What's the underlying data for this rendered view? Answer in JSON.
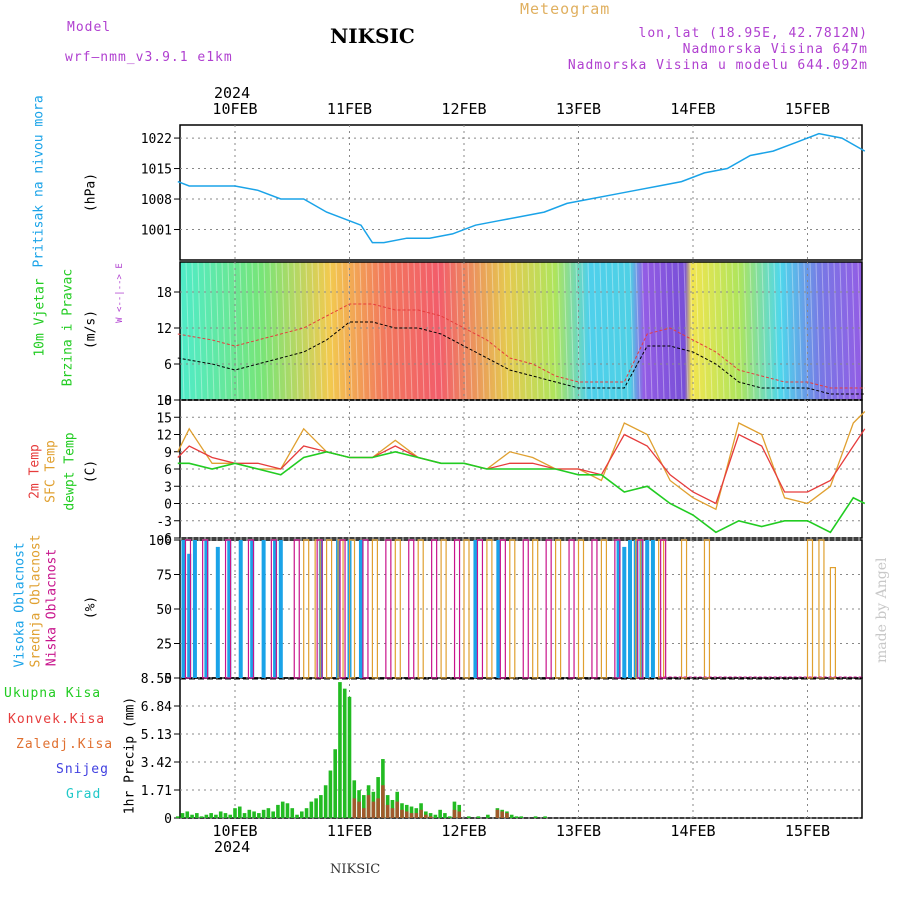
{
  "header": {
    "model_label": "Model",
    "model_name": "wrf—nmm_v3.9.1  e1km",
    "title": "NIKSIC",
    "app_title": "Meteogram",
    "coords": "lon,lat (18.95E, 42.7812N)",
    "elevation": "Nadmorska Visina 647m",
    "model_elevation": "Nadmorska Visina u modelu 644.092m",
    "year_top": "2024",
    "year_bottom": "2024",
    "footer": "NIKSIC",
    "watermark": "made by Angel"
  },
  "colors": {
    "pressure": "#1aa3e8",
    "temp2m": "#e63c3c",
    "sfc": "#e0a030",
    "dew": "#22cc22",
    "high": "#1aa3e8",
    "mid": "#e0a030",
    "low": "#c8148c",
    "magenta": "#b040d0",
    "orange": "#e0a030"
  },
  "chart_data": [
    {
      "type": "line",
      "panel": "pressure",
      "ylabel_text": "Pritisak na nivou mora",
      "ylabel_unit": "(hPa)",
      "yticks": [
        1001,
        1008,
        1015,
        1022
      ],
      "ylim": [
        994,
        1025
      ],
      "x_days": [
        "10FEB",
        "11FEB",
        "12FEB",
        "13FEB",
        "14FEB",
        "15FEB"
      ],
      "series": [
        {
          "x": [
            -0.5,
            -0.4,
            -0.2,
            0,
            0.2,
            0.4,
            0.6,
            0.8,
            1.0,
            1.1,
            1.2,
            1.3,
            1.5,
            1.7,
            1.9,
            2.1,
            2.3,
            2.5,
            2.7,
            2.9,
            3.1,
            3.3,
            3.5,
            3.7,
            3.9,
            4.1,
            4.3,
            4.5,
            4.7,
            4.9,
            5.1,
            5.3,
            5.5
          ],
          "y": [
            1012,
            1011,
            1011,
            1011,
            1010,
            1008,
            1008,
            1005,
            1003,
            1002,
            998,
            998,
            999,
            999,
            1000,
            1002,
            1003,
            1004,
            1005,
            1007,
            1008,
            1009,
            1010,
            1011,
            1012,
            1014,
            1015,
            1018,
            1019,
            1021,
            1023,
            1022,
            1019
          ]
        }
      ]
    },
    {
      "type": "line",
      "panel": "wind",
      "ylabel_text": [
        "10m Vjetar",
        "Brzina i Pravac"
      ],
      "ylabel_unit": "(m/s)",
      "compass": "W <--|--> E",
      "yticks": [
        0,
        6,
        12,
        18
      ],
      "ylim": [
        0,
        23
      ],
      "series": [
        {
          "name": "speed",
          "x": [
            -0.5,
            -0.2,
            0,
            0.2,
            0.4,
            0.6,
            0.8,
            1.0,
            1.2,
            1.4,
            1.6,
            1.8,
            2.0,
            2.2,
            2.4,
            2.6,
            2.8,
            3.0,
            3.2,
            3.4,
            3.6,
            3.8,
            4.0,
            4.2,
            4.4,
            4.6,
            4.8,
            5.0,
            5.2,
            5.5
          ],
          "y": [
            7,
            6,
            5,
            6,
            7,
            8,
            10,
            13,
            13,
            12,
            12,
            11,
            9,
            7,
            5,
            4,
            3,
            2,
            2,
            2,
            9,
            9,
            8,
            6,
            3,
            2,
            2,
            2,
            1,
            1
          ]
        },
        {
          "name": "gust",
          "x": [
            -0.5,
            -0.2,
            0,
            0.2,
            0.4,
            0.6,
            0.8,
            1.0,
            1.2,
            1.4,
            1.6,
            1.8,
            2.0,
            2.2,
            2.4,
            2.6,
            2.8,
            3.0,
            3.2,
            3.4,
            3.6,
            3.8,
            4.0,
            4.2,
            4.4,
            4.6,
            4.8,
            5.0,
            5.2,
            5.5
          ],
          "y": [
            11,
            10,
            9,
            10,
            11,
            12,
            14,
            16,
            16,
            15,
            15,
            14,
            12,
            10,
            7,
            6,
            4,
            3,
            3,
            3,
            11,
            12,
            10,
            8,
            5,
            4,
            3,
            3,
            2,
            2
          ]
        }
      ]
    },
    {
      "type": "line",
      "panel": "temperature",
      "ylabel_text": [
        "2m Temp",
        "SFC Temp",
        "dewpt Temp"
      ],
      "ylabel_unit": "(C)",
      "yticks": [
        -6,
        -3,
        0,
        3,
        6,
        9,
        12,
        15,
        18
      ],
      "ylim": [
        -6,
        18
      ],
      "series": [
        {
          "name": "2m Temp",
          "x": [
            -0.5,
            -0.4,
            -0.2,
            0,
            0.2,
            0.4,
            0.6,
            0.8,
            1.0,
            1.2,
            1.4,
            1.6,
            1.8,
            2.0,
            2.2,
            2.4,
            2.6,
            2.8,
            3.0,
            3.2,
            3.4,
            3.6,
            3.8,
            4.0,
            4.2,
            4.4,
            4.6,
            4.8,
            5.0,
            5.2,
            5.4,
            5.5
          ],
          "y": [
            8,
            10,
            8,
            7,
            7,
            6,
            10,
            9,
            8,
            8,
            10,
            8,
            7,
            7,
            6,
            7,
            7,
            6,
            6,
            5,
            12,
            10,
            5,
            2,
            0,
            12,
            10,
            2,
            2,
            4,
            10,
            13
          ]
        },
        {
          "name": "SFC Temp",
          "x": [
            -0.5,
            -0.4,
            -0.2,
            0,
            0.2,
            0.4,
            0.6,
            0.8,
            1.0,
            1.2,
            1.4,
            1.6,
            1.8,
            2.0,
            2.2,
            2.4,
            2.6,
            2.8,
            3.0,
            3.2,
            3.4,
            3.6,
            3.8,
            4.0,
            4.2,
            4.4,
            4.6,
            4.8,
            5.0,
            5.2,
            5.4,
            5.5
          ],
          "y": [
            9,
            13,
            7,
            7,
            6,
            6,
            13,
            9,
            8,
            8,
            11,
            8,
            7,
            7,
            6,
            9,
            8,
            6,
            6,
            4,
            14,
            12,
            4,
            1,
            -1,
            14,
            12,
            1,
            0,
            3,
            14,
            16
          ]
        },
        {
          "name": "dewpt Temp",
          "x": [
            -0.5,
            -0.4,
            -0.2,
            0,
            0.2,
            0.4,
            0.6,
            0.8,
            1.0,
            1.2,
            1.4,
            1.6,
            1.8,
            2.0,
            2.2,
            2.4,
            2.6,
            2.8,
            3.0,
            3.2,
            3.4,
            3.6,
            3.8,
            4.0,
            4.2,
            4.4,
            4.6,
            4.8,
            5.0,
            5.2,
            5.4,
            5.5
          ],
          "y": [
            7,
            7,
            6,
            7,
            6,
            5,
            8,
            9,
            8,
            8,
            9,
            8,
            7,
            7,
            6,
            6,
            6,
            6,
            5,
            5,
            2,
            3,
            0,
            -2,
            -5,
            -3,
            -4,
            -3,
            -3,
            -5,
            1,
            0
          ]
        }
      ]
    },
    {
      "type": "bar",
      "panel": "clouds",
      "ylabel_text": [
        "Visoka Oblacnost",
        "Srednja Oblacnost",
        "Niska Oblacnost"
      ],
      "ylabel_unit": "(%)",
      "yticks": [
        0,
        25,
        50,
        75,
        100
      ],
      "ylim": [
        0,
        100
      ],
      "series": [
        {
          "name": "Visoka Oblacnost",
          "x": [
            -0.45,
            -0.35,
            -0.25,
            -0.15,
            -0.05,
            0.05,
            0.15,
            -0.4,
            0.25,
            0.35,
            0.4,
            0.75,
            0.9,
            1.0,
            1.1,
            2.1,
            2.3,
            3.35,
            3.4,
            3.45,
            3.5,
            3.55,
            3.6,
            3.65
          ],
          "y": [
            100,
            100,
            100,
            95,
            100,
            100,
            100,
            90,
            100,
            100,
            100,
            100,
            100,
            100,
            100,
            100,
            100,
            100,
            95,
            100,
            100,
            100,
            100,
            100
          ]
        },
        {
          "name": "Srednja Oblacnost",
          "x": [
            0.6,
            0.7,
            0.8,
            0.9,
            1.0,
            1.2,
            1.4,
            1.6,
            1.8,
            2.0,
            2.2,
            2.4,
            2.6,
            2.8,
            3.0,
            3.2,
            3.5,
            3.7,
            3.9,
            4.1,
            5.0,
            5.1,
            5.2
          ],
          "y": [
            100,
            100,
            100,
            100,
            100,
            100,
            100,
            100,
            100,
            100,
            100,
            100,
            100,
            100,
            100,
            100,
            100,
            100,
            100,
            100,
            100,
            100,
            80
          ]
        },
        {
          "name": "Niska Oblacnost",
          "x": [
            -0.45,
            -0.3,
            -0.1,
            0.1,
            0.3,
            0.5,
            0.7,
            0.9,
            1.1,
            1.3,
            1.5,
            1.7,
            1.9,
            2.1,
            2.3,
            2.5,
            2.7,
            2.9,
            3.1,
            3.3,
            3.5,
            3.7
          ],
          "y": [
            100,
            100,
            100,
            100,
            100,
            100,
            100,
            100,
            100,
            100,
            100,
            100,
            100,
            100,
            100,
            100,
            100,
            100,
            100,
            100,
            100,
            100
          ]
        }
      ]
    },
    {
      "type": "bar",
      "panel": "precipitation",
      "ylabel_text": "1hr Precip (mm)",
      "legend": [
        "Ukupna Kisa",
        "Konvek.Kisa",
        "Zaledj.Kisa",
        "Snijeg",
        "Grad"
      ],
      "legend_colors": [
        "#22cc22",
        "#e63c3c",
        "#e07030",
        "#4040e0",
        "#20c8c8"
      ],
      "yticks": [
        "0",
        "1.71",
        "3.42",
        "5.13",
        "6.84",
        "8.55"
      ],
      "ylim": [
        0,
        8.55
      ],
      "categories_hours": [
        -12,
        -11,
        -10,
        -9,
        -8,
        -7,
        -6,
        -5,
        -4,
        -3,
        -2,
        -1,
        0,
        1,
        2,
        3,
        4,
        5,
        6,
        7,
        8,
        9,
        10,
        11,
        12,
        13,
        14,
        15,
        16,
        17,
        18,
        19,
        20,
        21,
        22,
        23,
        24,
        25,
        26,
        27,
        28,
        29,
        30,
        31,
        32,
        33,
        34,
        35,
        36,
        37,
        38,
        39,
        40,
        41,
        42,
        43,
        44,
        45,
        46,
        47,
        48,
        49,
        50,
        51,
        52,
        53,
        54,
        55,
        56,
        57,
        58,
        59,
        60,
        61,
        62,
        63,
        64,
        65,
        66,
        67,
        68,
        69,
        70,
        71,
        72
      ],
      "values": [
        0.1,
        0.3,
        0.4,
        0.2,
        0.3,
        0.1,
        0.2,
        0.3,
        0.2,
        0.4,
        0.3,
        0.2,
        0.6,
        0.7,
        0.3,
        0.5,
        0.4,
        0.3,
        0.5,
        0.6,
        0.4,
        0.8,
        1.0,
        0.9,
        0.6,
        0.2,
        0.4,
        0.6,
        1.0,
        1.2,
        1.4,
        2.0,
        2.9,
        4.2,
        8.3,
        7.9,
        7.4,
        2.3,
        1.7,
        1.4,
        2.0,
        1.6,
        2.5,
        3.6,
        1.4,
        1.1,
        1.6,
        0.9,
        0.8,
        0.7,
        0.6,
        0.9,
        0.4,
        0.3,
        0.2,
        0.5,
        0.3,
        0.1,
        1.0,
        0.8,
        0.0,
        0.1,
        0.0,
        0.1,
        0.0,
        0.2,
        0.0,
        0.6,
        0.5,
        0.4,
        0.2,
        0.1,
        0.1,
        0.0,
        0.0,
        0.1,
        0.0,
        0.1,
        0.0,
        0.0,
        0.0,
        0.0,
        0.0,
        0.0,
        0.0
      ],
      "convective": [
        0,
        0,
        0,
        0,
        0,
        0,
        0,
        0,
        0,
        0,
        0,
        0,
        0,
        0,
        0,
        0,
        0,
        0,
        0,
        0,
        0,
        0,
        0,
        0,
        0,
        0,
        0,
        0,
        0,
        0,
        0,
        0,
        0,
        0,
        0,
        0,
        0,
        1.2,
        1.0,
        0.6,
        1.4,
        1.0,
        1.2,
        2.0,
        0.8,
        0.6,
        1.0,
        0.5,
        0.4,
        0.3,
        0.3,
        0.5,
        0.2,
        0.1,
        0,
        0,
        0,
        0,
        0.5,
        0.4,
        0,
        0,
        0,
        0,
        0,
        0,
        0,
        0.5,
        0.4,
        0.3,
        0,
        0,
        0,
        0,
        0,
        0,
        0,
        0,
        0,
        0,
        0,
        0,
        0,
        0,
        0
      ]
    }
  ]
}
